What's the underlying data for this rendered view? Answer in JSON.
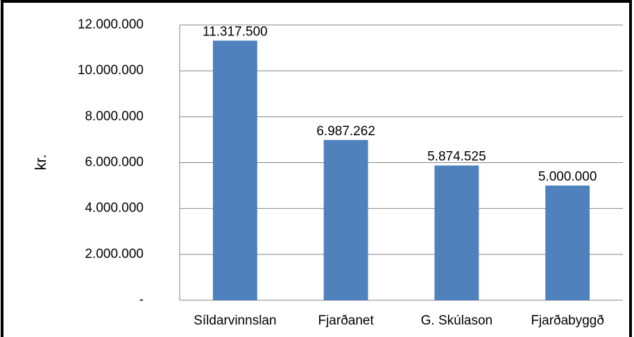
{
  "chart_data": {
    "type": "bar",
    "y_axis_label": "kr.",
    "categories": [
      "Síldarvinnslan",
      "Fjarðanet",
      "G. Skúlason",
      "Fjarðabyggð"
    ],
    "values": [
      11317500,
      6987262,
      5874525,
      5000000
    ],
    "value_labels": [
      "11.317.500",
      "6.987.262",
      "5.874.525",
      "5.000.000"
    ],
    "color": "#4f81bd",
    "ylim": [
      0,
      12000000
    ],
    "yticks": [
      {
        "value": 0,
        "label": "-"
      },
      {
        "value": 2000000,
        "label": "2.000.000"
      },
      {
        "value": 4000000,
        "label": "4.000.000"
      },
      {
        "value": 6000000,
        "label": "6.000.000"
      },
      {
        "value": 8000000,
        "label": "8.000.000"
      },
      {
        "value": 10000000,
        "label": "10.000.000"
      },
      {
        "value": 12000000,
        "label": "12.000.000"
      }
    ],
    "grid": true
  }
}
